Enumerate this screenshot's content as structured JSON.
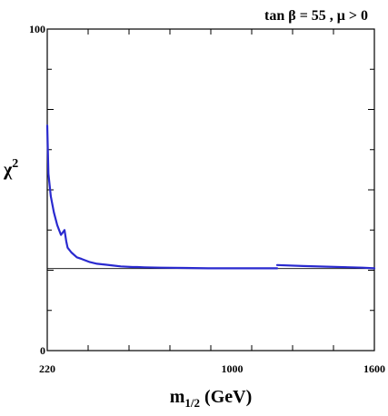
{
  "chart_data": {
    "type": "line",
    "title": "tan β = 55 ,  μ > 0",
    "xlabel": "m",
    "xlabel_sub": "1/2",
    "xlabel_unit": " (GeV)",
    "ylabel": "χ",
    "ylabel_sup": "2",
    "xlim": [
      220,
      1600
    ],
    "ylim": [
      0,
      100
    ],
    "x_ticks": [
      220,
      1000,
      1600
    ],
    "y_ticks": [
      0,
      100
    ],
    "grid": false,
    "reference_line": {
      "y": 25.5,
      "color": "#000000"
    },
    "series": [
      {
        "color": "#2a2acf",
        "segments": [
          {
            "x": [
              220,
              225,
              235,
              248,
              262,
              278,
              293,
              300,
              306,
              322,
              345,
              365,
              400,
              430,
              470,
              530,
              580,
              600,
              630,
              700,
              800,
              900,
              1000,
              1100,
              1190
            ],
            "y": [
              70,
              55,
              48,
              43,
              39,
              36,
              37.5,
              34,
              32,
              30.5,
              29,
              28.5,
              27.5,
              27,
              26.7,
              26.2,
              26,
              26,
              25.9,
              25.8,
              25.7,
              25.6,
              25.6,
              25.6,
              25.6
            ]
          },
          {
            "x": [
              1190,
              1300,
              1400,
              1500,
              1550,
              1600
            ],
            "y": [
              26.6,
              26.3,
              26.1,
              25.9,
              25.8,
              25.6
            ]
          }
        ]
      }
    ]
  }
}
